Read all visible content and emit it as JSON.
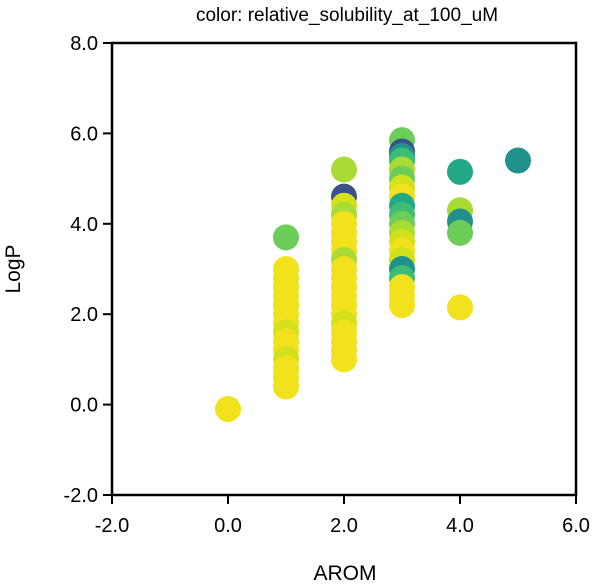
{
  "chart_data": {
    "type": "scatter",
    "title": "color: relative_solubility_at_100_uM",
    "xlabel": "AROM",
    "ylabel": "LogP",
    "xlim": [
      -2,
      6
    ],
    "ylim": [
      -2,
      8
    ],
    "xticks": [
      "-2.0",
      "0.0",
      "2.0",
      "4.0",
      "6.0"
    ],
    "yticks": [
      "-2.0",
      "0.0",
      "2.0",
      "4.0",
      "6.0",
      "8.0"
    ],
    "colors": {
      "yellow": "#f2e21d",
      "yellow_green": "#d2e11b",
      "lime": "#a8db33",
      "light_green": "#6ccd59",
      "green": "#3dbc74",
      "teal_green": "#22a884",
      "teal": "#21918c",
      "blue": "#3b528b"
    },
    "points": [
      {
        "x": 0,
        "y": -0.1,
        "c": "yellow"
      },
      {
        "x": 1,
        "y": 3.7,
        "c": "light_green"
      },
      {
        "x": 1,
        "y": 3.0,
        "c": "yellow"
      },
      {
        "x": 1,
        "y": 2.8,
        "c": "yellow"
      },
      {
        "x": 1,
        "y": 2.6,
        "c": "yellow"
      },
      {
        "x": 1,
        "y": 2.4,
        "c": "yellow"
      },
      {
        "x": 1,
        "y": 2.2,
        "c": "yellow"
      },
      {
        "x": 1,
        "y": 2.0,
        "c": "yellow"
      },
      {
        "x": 1,
        "y": 1.8,
        "c": "yellow"
      },
      {
        "x": 1,
        "y": 1.6,
        "c": "yellow_green"
      },
      {
        "x": 1,
        "y": 1.4,
        "c": "yellow"
      },
      {
        "x": 1,
        "y": 1.2,
        "c": "yellow"
      },
      {
        "x": 1,
        "y": 1.0,
        "c": "yellow_green"
      },
      {
        "x": 1,
        "y": 0.8,
        "c": "yellow"
      },
      {
        "x": 1,
        "y": 0.6,
        "c": "yellow"
      },
      {
        "x": 1,
        "y": 0.4,
        "c": "yellow"
      },
      {
        "x": 2,
        "y": 5.2,
        "c": "lime"
      },
      {
        "x": 2,
        "y": 4.6,
        "c": "blue"
      },
      {
        "x": 2,
        "y": 4.4,
        "c": "yellow_green"
      },
      {
        "x": 2,
        "y": 4.2,
        "c": "lime"
      },
      {
        "x": 2,
        "y": 4.0,
        "c": "yellow"
      },
      {
        "x": 2,
        "y": 3.8,
        "c": "yellow"
      },
      {
        "x": 2,
        "y": 3.6,
        "c": "yellow"
      },
      {
        "x": 2,
        "y": 3.4,
        "c": "yellow"
      },
      {
        "x": 2,
        "y": 3.2,
        "c": "lime"
      },
      {
        "x": 2,
        "y": 3.0,
        "c": "yellow"
      },
      {
        "x": 2,
        "y": 2.8,
        "c": "yellow"
      },
      {
        "x": 2,
        "y": 2.6,
        "c": "yellow"
      },
      {
        "x": 2,
        "y": 2.4,
        "c": "yellow"
      },
      {
        "x": 2,
        "y": 2.2,
        "c": "yellow"
      },
      {
        "x": 2,
        "y": 2.0,
        "c": "yellow"
      },
      {
        "x": 2,
        "y": 1.8,
        "c": "yellow_green"
      },
      {
        "x": 2,
        "y": 1.6,
        "c": "yellow"
      },
      {
        "x": 2,
        "y": 1.4,
        "c": "yellow"
      },
      {
        "x": 2,
        "y": 1.2,
        "c": "yellow"
      },
      {
        "x": 2,
        "y": 1.0,
        "c": "yellow"
      },
      {
        "x": 3,
        "y": 5.85,
        "c": "light_green"
      },
      {
        "x": 3,
        "y": 5.6,
        "c": "blue"
      },
      {
        "x": 3,
        "y": 5.5,
        "c": "teal"
      },
      {
        "x": 3,
        "y": 5.4,
        "c": "green"
      },
      {
        "x": 3,
        "y": 5.2,
        "c": "lime"
      },
      {
        "x": 3,
        "y": 5.0,
        "c": "light_green"
      },
      {
        "x": 3,
        "y": 4.8,
        "c": "yellow_green"
      },
      {
        "x": 3,
        "y": 4.6,
        "c": "yellow"
      },
      {
        "x": 3,
        "y": 4.4,
        "c": "teal_green"
      },
      {
        "x": 3,
        "y": 4.2,
        "c": "green"
      },
      {
        "x": 3,
        "y": 4.0,
        "c": "light_green"
      },
      {
        "x": 3,
        "y": 3.8,
        "c": "lime"
      },
      {
        "x": 3,
        "y": 3.6,
        "c": "yellow_green"
      },
      {
        "x": 3,
        "y": 3.4,
        "c": "yellow"
      },
      {
        "x": 3,
        "y": 3.2,
        "c": "yellow_green"
      },
      {
        "x": 3,
        "y": 3.0,
        "c": "teal"
      },
      {
        "x": 3,
        "y": 2.8,
        "c": "green"
      },
      {
        "x": 3,
        "y": 2.6,
        "c": "yellow"
      },
      {
        "x": 3,
        "y": 2.4,
        "c": "yellow"
      },
      {
        "x": 3,
        "y": 2.2,
        "c": "yellow"
      },
      {
        "x": 4,
        "y": 5.15,
        "c": "teal_green"
      },
      {
        "x": 4,
        "y": 4.3,
        "c": "lime"
      },
      {
        "x": 4,
        "y": 4.05,
        "c": "teal"
      },
      {
        "x": 4,
        "y": 3.8,
        "c": "light_green"
      },
      {
        "x": 4,
        "y": 2.15,
        "c": "yellow"
      },
      {
        "x": 5,
        "y": 5.4,
        "c": "teal"
      }
    ]
  }
}
